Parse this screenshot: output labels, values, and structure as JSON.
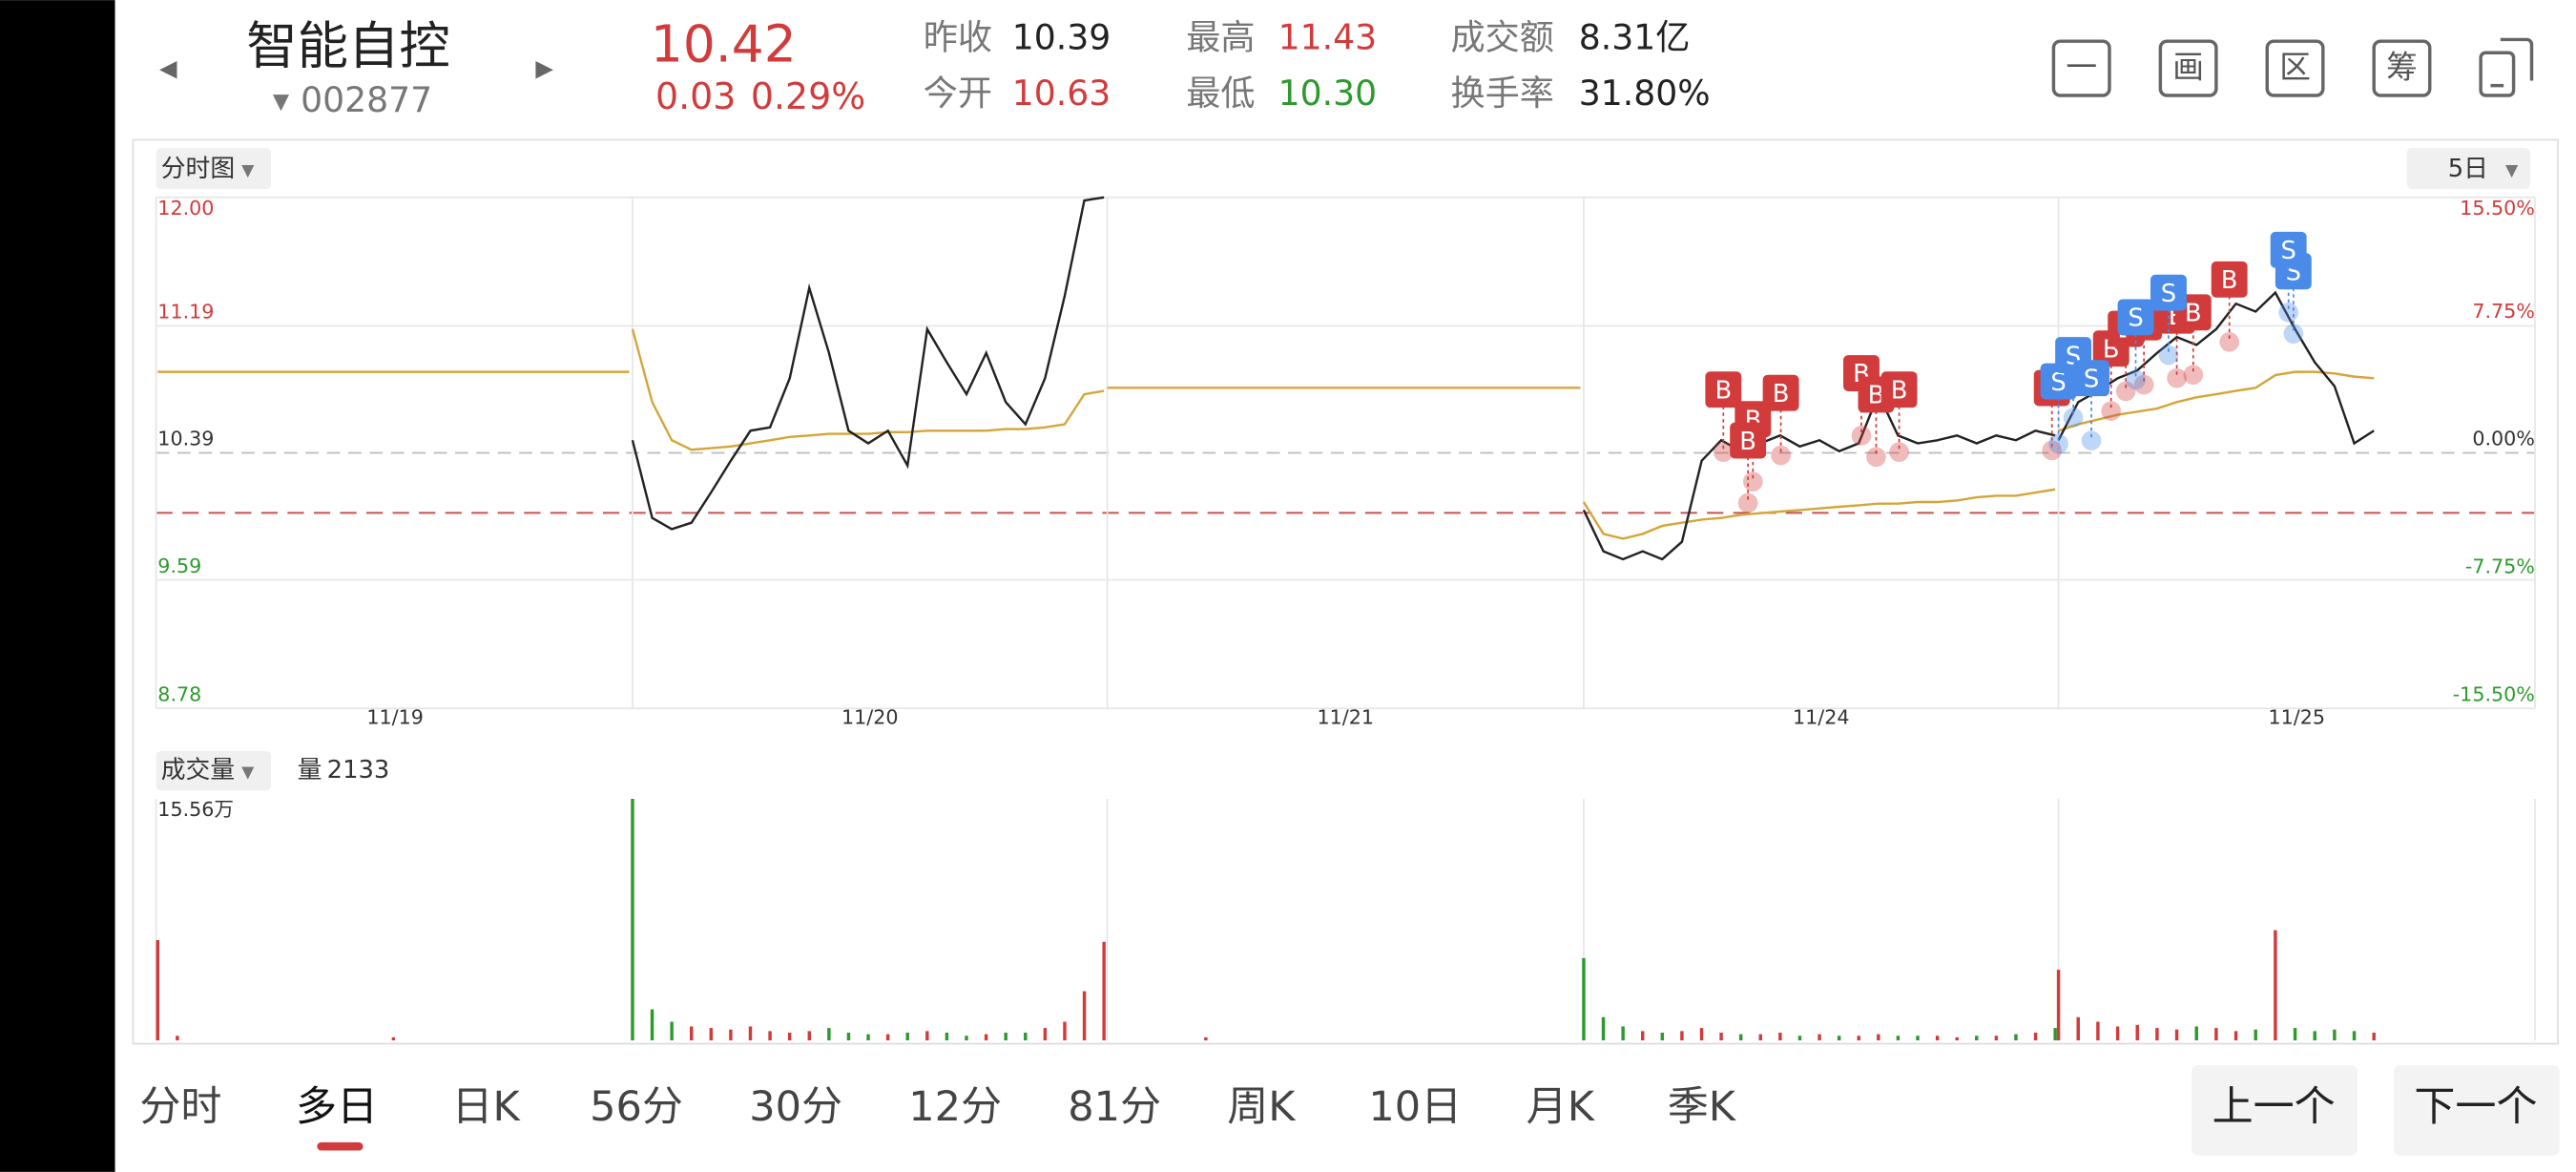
{
  "header": {
    "name": "智能自控",
    "code": "002877",
    "price": "10.42",
    "change": "0.03",
    "change_pct": "0.29%"
  },
  "stats": [
    {
      "label": "昨收",
      "value": "10.39"
    },
    {
      "label": "今开",
      "value": "10.63"
    },
    {
      "label": "最高",
      "value": "11.43"
    },
    {
      "label": "最低",
      "value": "10.30"
    },
    {
      "label": "成交额",
      "value": "8.31亿"
    },
    {
      "label": "换手率",
      "value": "31.80%"
    }
  ],
  "toolbar": [
    "一",
    "画",
    "区",
    "筹"
  ],
  "chart": {
    "type": "line",
    "mode_button": "分时图",
    "period_button": "5日",
    "days": [
      "11/19",
      "11/20",
      "11/21",
      "11/24",
      "11/25"
    ],
    "ylim": [
      8.78,
      12.0
    ],
    "yticks": [
      {
        "value": 12.0,
        "label": "12.00"
      },
      11.19,
      10.39,
      9.59,
      8.78
    ],
    "y2lim": [
      -15.5,
      15.5
    ],
    "y2ticks": [
      {
        "value": 15.5,
        "label": "15.50%"
      },
      {
        "value": 7.75,
        "label": "7.75%"
      },
      {
        "value": 0,
        "label": "0.00%"
      },
      {
        "value": -7.75,
        "label": "-7.75%"
      },
      {
        "value": -15.5,
        "label": "-15.50%"
      }
    ],
    "price": [
      [],
      [
        10.47,
        9.98,
        9.91,
        9.95,
        10.14,
        10.34,
        10.53,
        10.55,
        10.86,
        11.43,
        11.02,
        10.53,
        10.45,
        10.53,
        10.31,
        11.17,
        10.96,
        10.76,
        11.02,
        10.71,
        10.57,
        10.86,
        11.38,
        11.98,
        12.0
      ],
      [],
      [
        10.03,
        9.77,
        9.72,
        9.77,
        9.72,
        9.83,
        10.34,
        10.47,
        10.4,
        10.45,
        10.5,
        10.43,
        10.47,
        10.4,
        10.45,
        10.76,
        10.5,
        10.45,
        10.47,
        10.5,
        10.45,
        10.5,
        10.47,
        10.53,
        10.5
      ],
      [
        10.47,
        10.71,
        10.78,
        10.86,
        10.91,
        11.02,
        11.12,
        11.07,
        11.17,
        11.33,
        11.28,
        11.4,
        11.17,
        10.96,
        10.81,
        10.45,
        10.53,
        null,
        null,
        null,
        null,
        null,
        null,
        null,
        null
      ]
    ],
    "average": [
      [
        10.9,
        10.9
      ],
      [
        11.17,
        10.71,
        10.47,
        10.41,
        10.42,
        10.43,
        10.45,
        10.47,
        10.49,
        10.5,
        10.51,
        10.51,
        10.51,
        10.52,
        10.52,
        10.53,
        10.53,
        10.53,
        10.53,
        10.54,
        10.54,
        10.55,
        10.57,
        10.76,
        10.78
      ],
      [
        10.8,
        10.8
      ],
      [
        10.08,
        9.88,
        9.85,
        9.88,
        9.93,
        9.95,
        9.97,
        9.98,
        10.0,
        10.01,
        10.02,
        10.03,
        10.04,
        10.05,
        10.06,
        10.07,
        10.07,
        10.08,
        10.08,
        10.09,
        10.11,
        10.12,
        10.12,
        10.14,
        10.16
      ],
      [
        10.53,
        10.57,
        10.6,
        10.63,
        10.65,
        10.67,
        10.71,
        10.74,
        10.76,
        10.78,
        10.8,
        10.88,
        10.9,
        10.9,
        10.89,
        10.87,
        10.86,
        null,
        null,
        null,
        null,
        null,
        null,
        null,
        null
      ]
    ],
    "markers": [
      "B",
      "B",
      "B",
      "B",
      "B",
      "B",
      "B",
      "B",
      "B",
      "B",
      "B",
      "B",
      "B",
      "B",
      "S",
      "S",
      "S",
      "S",
      "S",
      "S",
      "S"
    ],
    "volume_button": "成交量",
    "volume_label": "量",
    "volume_value": 2133,
    "volume_ylim": [
      0,
      155600
    ],
    "volume_ticks": [
      {
        "value": 155600,
        "label": "15.56万"
      }
    ],
    "volume": [
      [
        64600,
        3000,
        0,
        0,
        0,
        0,
        0,
        0,
        0,
        0,
        0,
        0,
        2000,
        0,
        0,
        0,
        0,
        0,
        0,
        0,
        0,
        0,
        0,
        0,
        0
      ],
      [
        155600,
        20000,
        12000,
        9000,
        8000,
        7000,
        9000,
        6000,
        5000,
        6000,
        8000,
        5000,
        4000,
        4000,
        5000,
        6000,
        5000,
        3000,
        4000,
        5000,
        5000,
        8000,
        12000,
        31700,
        63500
      ],
      [
        0,
        0,
        0,
        0,
        0,
        2000,
        0,
        0,
        0,
        0,
        0,
        0,
        0,
        0,
        0,
        0,
        0,
        0,
        0,
        0,
        0,
        0,
        0,
        0,
        0
      ],
      [
        53000,
        15000,
        9000,
        6000,
        5000,
        6000,
        8000,
        5000,
        4000,
        4000,
        5000,
        3000,
        4000,
        3000,
        3000,
        4000,
        3000,
        3000,
        3000,
        2000,
        3000,
        3000,
        4000,
        5000,
        8000
      ],
      [
        45500,
        15000,
        12000,
        9000,
        10000,
        8000,
        7000,
        9000,
        8000,
        6000,
        7000,
        71000,
        8000,
        6000,
        7000,
        6000,
        5000,
        null,
        null,
        null,
        null,
        null,
        null,
        null,
        null
      ]
    ]
  },
  "tabs": [
    "分时",
    "多日",
    "日K",
    "56分",
    "30分",
    "12分",
    "81分",
    "周K",
    "10日",
    "月K",
    "季K"
  ],
  "buttons": [
    "上一个",
    "下一个"
  ]
}
